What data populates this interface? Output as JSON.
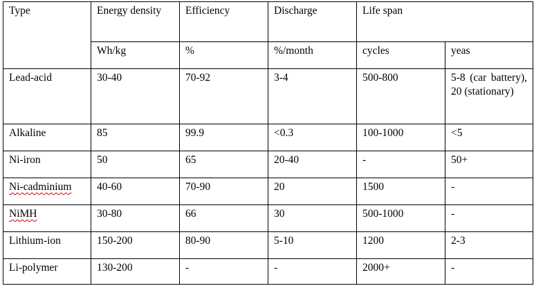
{
  "table": {
    "headers": {
      "type": "Type",
      "energy_density": "Energy density",
      "efficiency": "Efficiency",
      "discharge": "Discharge",
      "life_span": "Life span"
    },
    "units": {
      "energy_density": "Wh/kg",
      "efficiency": "%",
      "discharge": "%/month",
      "cycles": "cycles",
      "years": "yeas"
    },
    "rows": [
      {
        "type": "Lead-acid",
        "energy": "30-40",
        "efficiency": "70-92",
        "discharge": "3-4",
        "cycles": "500-800",
        "years": "5-8 (car battery), 20 (stationary)"
      },
      {
        "type": "Alkaline",
        "energy": "85",
        "efficiency": "99.9",
        "discharge": "<0.3",
        "cycles": "100-1000",
        "years": "<5"
      },
      {
        "type": "Ni-iron",
        "energy": "50",
        "efficiency": "65",
        "discharge": "20-40",
        "cycles": "-",
        "years": "50+"
      },
      {
        "type": "Ni-cadminium",
        "energy": "40-60",
        "efficiency": "70-90",
        "discharge": "20",
        "cycles": "1500",
        "years": "-"
      },
      {
        "type": "NiMH",
        "energy": "30-80",
        "efficiency": "66",
        "discharge": "30",
        "cycles": "500-1000",
        "years": "-"
      },
      {
        "type": "Lithium-ion",
        "energy": "150-200",
        "efficiency": "80-90",
        "discharge": "5-10",
        "cycles": "1200",
        "years": "2-3"
      },
      {
        "type": "Li-polymer",
        "energy": "130-200",
        "efficiency": "-",
        "discharge": "-",
        "cycles": "2000+",
        "years": "-"
      }
    ]
  }
}
